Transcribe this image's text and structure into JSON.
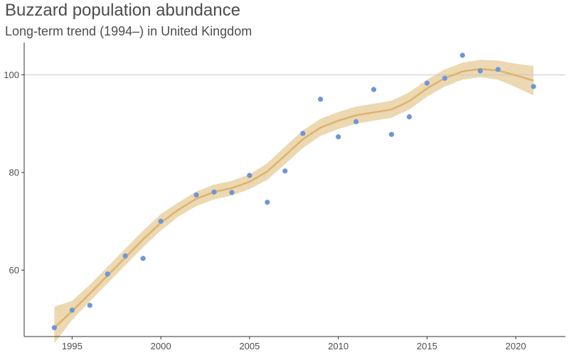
{
  "chart_data": {
    "type": "scatter",
    "title": "Buzzard population abundance",
    "subtitle": "Long-term trend (1994–) in United Kingdom",
    "xlabel": "",
    "ylabel": "",
    "xlim": [
      1992.3,
      2022.8
    ],
    "ylim": [
      46.4,
      106.6
    ],
    "x_ticks": [
      1995,
      2000,
      2005,
      2010,
      2015,
      2020
    ],
    "y_ticks": [
      60,
      80,
      100
    ],
    "reference_line_y": 100,
    "grid": false,
    "colors": {
      "points": "#6f95d8",
      "trend": "#ddb36f",
      "band": "#ecd8b1",
      "reference": "#c8c8c8",
      "axis": "#333333"
    },
    "points": {
      "x": [
        1994,
        1995,
        1996,
        1997,
        1998,
        1999,
        2000,
        2002,
        2003,
        2004,
        2005,
        2006,
        2007,
        2008,
        2009,
        2010,
        2011,
        2012,
        2013,
        2014,
        2015,
        2016,
        2017,
        2018,
        2019,
        2021
      ],
      "y": [
        48.2,
        51.8,
        52.8,
        59.2,
        62.9,
        62.4,
        70.0,
        75.4,
        76.0,
        75.9,
        79.4,
        73.9,
        80.3,
        88.0,
        95.0,
        87.3,
        90.4,
        97.0,
        87.8,
        91.4,
        98.3,
        99.3,
        104.0,
        100.8,
        101.1,
        97.6
      ]
    },
    "trend": {
      "x": [
        1994,
        1995,
        1996,
        1997,
        1998,
        1999,
        2000,
        2001,
        2002,
        2003,
        2004,
        2005,
        2006,
        2007,
        2008,
        2009,
        2010,
        2011,
        2012,
        2013,
        2014,
        2015,
        2016,
        2017,
        2018,
        2019,
        2020,
        2021
      ],
      "y": [
        48.2,
        51.6,
        55.2,
        58.9,
        62.6,
        66.3,
        69.7,
        72.4,
        74.6,
        76.0,
        76.8,
        78.1,
        80.2,
        83.5,
        86.8,
        89.2,
        90.6,
        91.7,
        92.3,
        92.9,
        94.6,
        97.2,
        99.3,
        100.7,
        101.2,
        100.9,
        99.9,
        98.8
      ],
      "lower": [
        45.0,
        49.8,
        53.6,
        57.3,
        61.0,
        64.7,
        68.1,
        71.0,
        73.1,
        74.5,
        75.3,
        76.6,
        78.5,
        81.7,
        85.0,
        87.5,
        88.9,
        90.0,
        90.6,
        91.2,
        92.9,
        95.5,
        97.6,
        99.0,
        99.5,
        99.0,
        97.5,
        95.8
      ],
      "upper": [
        52.5,
        53.7,
        57.0,
        60.7,
        64.4,
        68.1,
        71.5,
        73.9,
        76.1,
        77.5,
        78.3,
        79.6,
        81.9,
        85.3,
        88.6,
        91.0,
        92.4,
        93.5,
        94.1,
        94.7,
        96.4,
        99.0,
        101.1,
        102.5,
        103.1,
        102.9,
        102.3,
        101.8
      ]
    }
  }
}
